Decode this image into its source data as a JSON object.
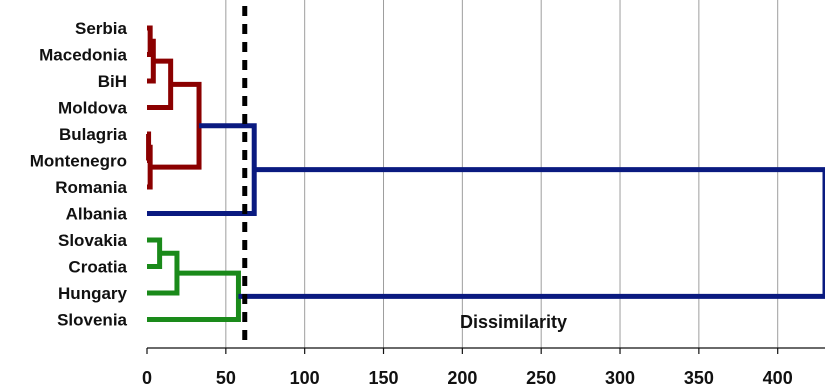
{
  "chart_data": {
    "type": "dendrogram",
    "title": "",
    "xlabel": "Dissimilarity",
    "ylabel": "",
    "xlim": [
      0,
      430
    ],
    "xticks": [
      0,
      50,
      100,
      150,
      200,
      250,
      300,
      350,
      400
    ],
    "grid": "vertical",
    "leaves": [
      "Serbia",
      "Macedonia",
      "BiH",
      "Moldova",
      "Bulagria",
      "Montenegro",
      "Romania",
      "Albania",
      "Slovakia",
      "Croatia",
      "Hungary",
      "Slovenia"
    ],
    "cut_line": {
      "x": 62,
      "style": "dashed",
      "color": "#000000"
    },
    "merges": [
      {
        "left": "Serbia",
        "right": "Macedonia",
        "height": 2,
        "color": "#8b0000"
      },
      {
        "left": "Serbia+Macedonia",
        "right": "BiH",
        "height": 4,
        "color": "#8b0000"
      },
      {
        "left": "Serbia+Macedonia+BiH",
        "right": "Moldova",
        "height": 15,
        "color": "#8b0000"
      },
      {
        "left": "Bulagria",
        "right": "Montenegro",
        "height": 1,
        "color": "#8b0000"
      },
      {
        "left": "Bulagria+Montenegro",
        "right": "Romania",
        "height": 2,
        "color": "#8b0000"
      },
      {
        "left": "Serbia..Moldova",
        "right": "Bulagria..Romania",
        "height": 33,
        "color": "#8b0000"
      },
      {
        "left": "Serbia..Romania",
        "right": "Albania",
        "height": 68,
        "color": "#0a1a80"
      },
      {
        "left": "Slovakia",
        "right": "Croatia",
        "height": 8,
        "color": "#1a8a1a"
      },
      {
        "left": "Slovakia+Croatia",
        "right": "Hungary",
        "height": 19,
        "color": "#1a8a1a"
      },
      {
        "left": "Slovakia..Hungary",
        "right": "Slovenia",
        "height": 58,
        "color": "#1a8a1a"
      },
      {
        "left": "Serbia..Albania",
        "right": "Slovakia..Slovenia",
        "height": 430,
        "color": "#0a1a80"
      }
    ]
  }
}
